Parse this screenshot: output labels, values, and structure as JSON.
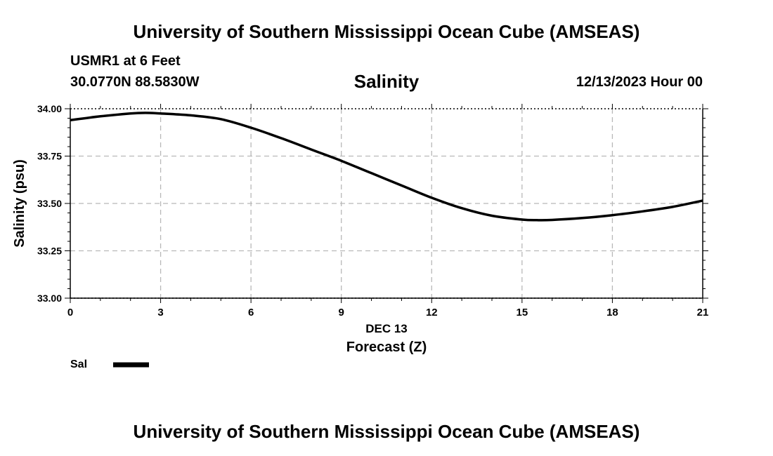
{
  "header": {
    "title": "University of Southern Mississippi Ocean Cube (AMSEAS)",
    "station": "USMR1 at 6 Feet",
    "coords": "30.0770N  88.5830W",
    "valid_time": "12/13/2023 Hour 00"
  },
  "footer": {
    "title": "University of Southern Mississippi Ocean Cube (AMSEAS)"
  },
  "chart_data": {
    "type": "line",
    "title": "Salinity",
    "xlabel": "Forecast (Z)",
    "xlabel_date": "DEC 13",
    "ylabel": "Salinity (psu)",
    "xlim": [
      0,
      21
    ],
    "ylim": [
      33.0,
      34.0
    ],
    "x_ticks": [
      0,
      3,
      6,
      9,
      12,
      15,
      18,
      21
    ],
    "x_tick_labels": [
      "0",
      "3",
      "6",
      "9",
      "12",
      "15",
      "18",
      "21"
    ],
    "y_ticks": [
      33.0,
      33.25,
      33.5,
      33.75,
      34.0
    ],
    "y_tick_labels": [
      "33.00",
      "33.25",
      "33.50",
      "33.75",
      "34.00"
    ],
    "grid": true,
    "legend_position": "bottom-left",
    "series": [
      {
        "name": "Sal",
        "color": "#000000",
        "x": [
          0,
          1,
          2,
          2.5,
          3,
          4,
          5,
          6,
          7,
          8,
          9,
          10,
          11,
          12,
          13,
          14,
          15,
          15.5,
          16,
          17,
          18,
          19,
          20,
          21
        ],
        "y": [
          33.94,
          33.96,
          33.975,
          33.978,
          33.975,
          33.965,
          33.945,
          33.9,
          33.845,
          33.785,
          33.725,
          33.66,
          33.595,
          33.53,
          33.475,
          33.435,
          33.415,
          33.412,
          33.413,
          33.423,
          33.438,
          33.458,
          33.482,
          33.515
        ]
      }
    ]
  }
}
